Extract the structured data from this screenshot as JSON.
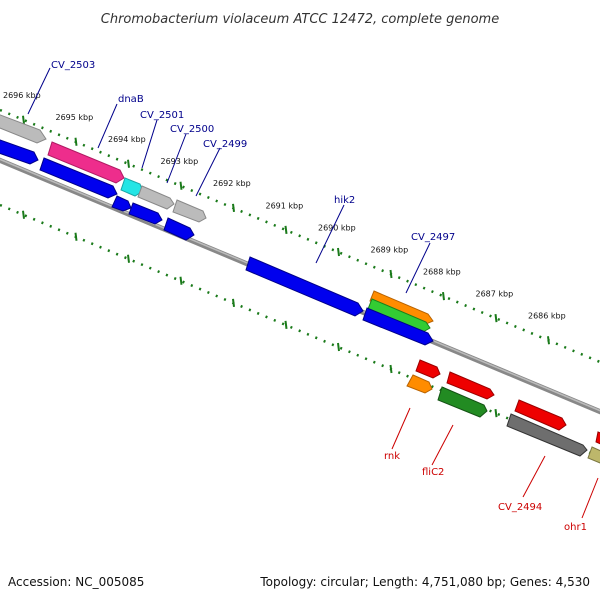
{
  "title": "Chromobacterium violaceum ATCC 12472, complete genome",
  "footer": {
    "accession": "Accession: NC_005085",
    "summary": "Topology: circular; Length: 4,751,080 bp; Genes: 4,530"
  },
  "colors": {
    "forward_label": "#00008b",
    "reverse_label": "#cc0000",
    "tick": "#1a7a1a",
    "backbone": "#888888"
  },
  "ticks": [
    "2696 kbp",
    "2695 kbp",
    "2694 kbp",
    "2693 kbp",
    "2692 kbp",
    "2691 kbp",
    "2690 kbp",
    "2689 kbp",
    "2688 kbp",
    "2687 kbp",
    "2686 kbp"
  ],
  "forward_labels": [
    "CV_2503",
    "dnaB",
    "CV_2501",
    "CV_2500",
    "CV_2499",
    "hik2",
    "CV_2497"
  ],
  "reverse_labels": [
    "rnk",
    "fliC2",
    "CV_2494",
    "ohr1"
  ]
}
